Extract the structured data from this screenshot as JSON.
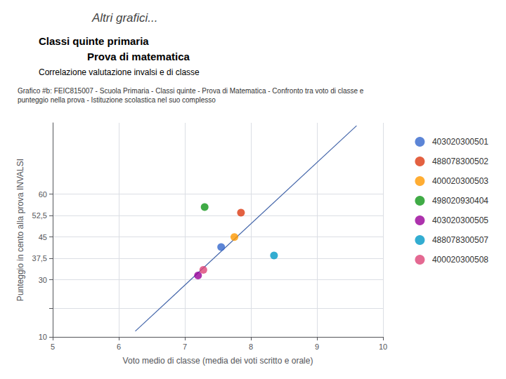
{
  "chart_data": {
    "type": "scatter",
    "title": "Altri grafici...",
    "subtitles": [
      "Classi quinte primaria",
      "Prova di matematica",
      "Correlazione valutazione invalsi e di classe"
    ],
    "chart_title": "Grafico #b: FEIC815007 - Scuola Primaria - Classi quinte - Prova di Matematica - Confronto tra voto di classe e\npunteggio nella prova - Istituzione scolastica nel suo complesso",
    "x_label": "Voto medio di classe (media dei voti scritto e orale)",
    "y_label": "Punteggio in cento alla prova INVALSI",
    "xlim": [
      5,
      10
    ],
    "ylim": [
      10,
      85
    ],
    "xticks": [
      5,
      6,
      7,
      8,
      9,
      10
    ],
    "yticks": [
      10,
      {
        "value": 20,
        "label": ""
      },
      30,
      {
        "value": 37.5,
        "label": "37,5"
      },
      45,
      {
        "value": 52.5,
        "label": "52,5"
      },
      60
    ],
    "grid": true,
    "legend": "right",
    "marker": "circle",
    "series": [
      {
        "name": "403020300501",
        "color": "#3366cc",
        "x": [
          7.55
        ],
        "values": [
          41.5
        ]
      },
      {
        "name": "488078300502",
        "color": "#dc3912",
        "x": [
          7.85
        ],
        "values": [
          53.5
        ]
      },
      {
        "name": "400020300503",
        "color": "#ff9900",
        "x": [
          7.75
        ],
        "values": [
          45.0
        ]
      },
      {
        "name": "498020930404",
        "color": "#109618",
        "x": [
          7.3
        ],
        "values": [
          55.5
        ]
      },
      {
        "name": "403020300505",
        "color": "#990099",
        "x": [
          7.2
        ],
        "values": [
          31.5
        ]
      },
      {
        "name": "488078300507",
        "color": "#0099c6",
        "x": [
          8.35
        ],
        "values": [
          38.5
        ]
      },
      {
        "name": "400020300508",
        "color": "#dd4477",
        "x": [
          7.28
        ],
        "values": [
          33.5
        ]
      }
    ],
    "trend_line": {
      "type": "line",
      "color": "#4466aa",
      "x": [
        6.25,
        9.6
      ],
      "values": [
        12,
        84
      ]
    }
  }
}
